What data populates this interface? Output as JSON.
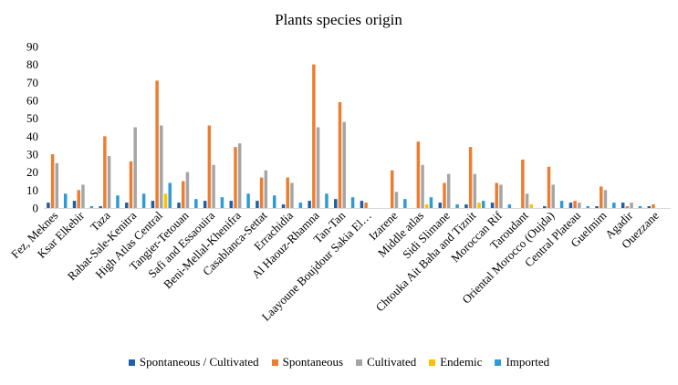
{
  "chart_data": {
    "type": "bar",
    "title": "Plants species origin",
    "xlabel": "",
    "ylabel": "",
    "ylim": [
      0,
      90
    ],
    "yticks": [
      0,
      10,
      20,
      30,
      40,
      50,
      60,
      70,
      80,
      90
    ],
    "grid": false,
    "legend_position": "bottom",
    "categories": [
      "Fez, Meknes",
      "Ksar Elkebir",
      "Taza",
      "Rabat-Sale-Kenitra",
      "High Atlas Central",
      "Tangier-Tetouan",
      "Safi and Essaouira",
      "Beni-Mellal-Khenifra",
      "Casablanca-Settat",
      "Errachidia",
      "Al Haouz-Rhamna",
      "Tan-Tan",
      "Laayoune Boujdour Sakia El…",
      "Izarene",
      "Middle atlas",
      "Sidi Slimane",
      "Chtouka Ait Baha and Tiznit",
      "Moroccan Rif",
      "Taroudant",
      "Oriental Morocco (Oujda)",
      "Central Plateau",
      "Guelmim",
      "Agadir",
      "Ouezzane"
    ],
    "series": [
      {
        "name": "Spontaneous / Cultivated",
        "color": "#1f5fa8",
        "values": [
          3,
          4,
          1,
          3,
          4,
          3,
          4,
          4,
          4,
          2,
          4,
          5,
          4,
          0,
          0,
          3,
          2,
          3,
          0,
          1,
          3,
          1,
          3,
          1
        ]
      },
      {
        "name": "Spontaneous",
        "color": "#ed7d31",
        "values": [
          30,
          10,
          40,
          26,
          71,
          15,
          46,
          34,
          17,
          17,
          80,
          59,
          3,
          21,
          37,
          14,
          34,
          14,
          27,
          23,
          4,
          12,
          1,
          2
        ]
      },
      {
        "name": "Cultivated",
        "color": "#a5a5a5",
        "values": [
          25,
          13,
          29,
          45,
          46,
          20,
          24,
          36,
          21,
          14,
          45,
          48,
          0,
          9,
          24,
          19,
          19,
          13,
          8,
          13,
          3,
          10,
          3,
          0
        ]
      },
      {
        "name": "Endemic",
        "color": "#ffc000",
        "values": [
          0,
          0,
          0,
          0,
          8,
          0,
          0,
          0,
          0,
          0,
          0,
          0,
          0,
          0,
          2,
          0,
          3,
          0,
          2,
          0,
          0,
          0,
          0,
          0
        ]
      },
      {
        "name": "Imported",
        "color": "#2e9bd6",
        "values": [
          8,
          1,
          7,
          8,
          14,
          5,
          6,
          8,
          7,
          3,
          8,
          6,
          0,
          5,
          6,
          2,
          4,
          2,
          0,
          4,
          1,
          3,
          1,
          0
        ]
      }
    ]
  }
}
